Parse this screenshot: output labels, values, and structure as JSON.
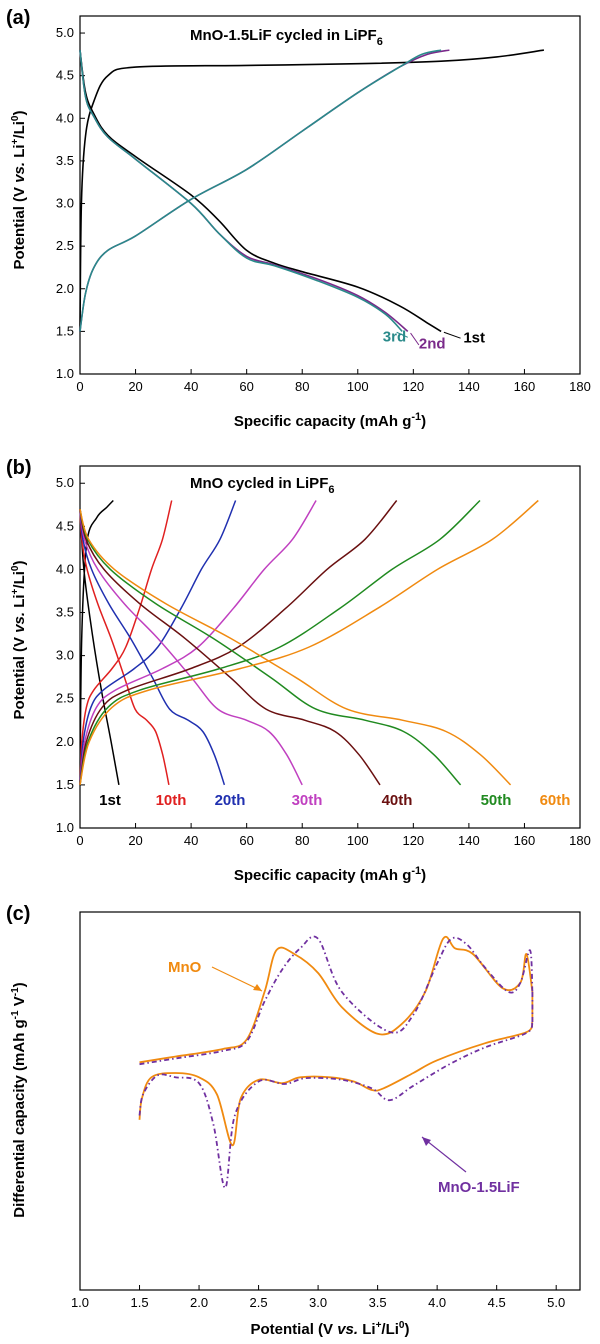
{
  "chart_data": [
    {
      "type": "line",
      "panel": "(a)",
      "title": "MnO-1.5LiF cycled in LiPF",
      "title_sub": "6",
      "xlabel": "Specific capacity (mAh g",
      "xlabel_sup": "-1",
      "xlabel_end": ")",
      "ylabel": "Potential (V vs. Li+/Li0)",
      "xlim": [
        0,
        180
      ],
      "ylim": [
        1.0,
        5.2
      ],
      "xticks": [
        "0",
        "20",
        "40",
        "60",
        "80",
        "100",
        "120",
        "140",
        "160",
        "180"
      ],
      "yticks": [
        "1.0",
        "1.5",
        "2.0",
        "2.5",
        "3.0",
        "3.5",
        "4.0",
        "4.5",
        "5.0"
      ],
      "series": [
        {
          "name": "1st",
          "color": "#000000",
          "charge": [
            [
              0,
              1.5
            ],
            [
              0.5,
              3.0
            ],
            [
              2,
              3.8
            ],
            [
              5,
              4.2
            ],
            [
              10,
              4.5
            ],
            [
              20,
              4.6
            ],
            [
              60,
              4.62
            ],
            [
              100,
              4.64
            ],
            [
              130,
              4.67
            ],
            [
              150,
              4.72
            ],
            [
              167,
              4.8
            ]
          ],
          "discharge": [
            [
              0,
              4.8
            ],
            [
              2,
              4.3
            ],
            [
              5,
              4.05
            ],
            [
              10,
              3.8
            ],
            [
              20,
              3.55
            ],
            [
              40,
              3.1
            ],
            [
              50,
              2.8
            ],
            [
              60,
              2.45
            ],
            [
              70,
              2.3
            ],
            [
              80,
              2.2
            ],
            [
              100,
              2.02
            ],
            [
              115,
              1.8
            ],
            [
              125,
              1.6
            ],
            [
              130,
              1.5
            ]
          ]
        },
        {
          "name": "2nd",
          "color": "#7a2a8a",
          "charge": [
            [
              0,
              1.5
            ],
            [
              2,
              1.95
            ],
            [
              5,
              2.25
            ],
            [
              10,
              2.45
            ],
            [
              20,
              2.62
            ],
            [
              40,
              3.05
            ],
            [
              60,
              3.4
            ],
            [
              80,
              3.85
            ],
            [
              100,
              4.3
            ],
            [
              115,
              4.6
            ],
            [
              125,
              4.75
            ],
            [
              133,
              4.8
            ]
          ],
          "discharge": [
            [
              0,
              4.8
            ],
            [
              2,
              4.25
            ],
            [
              5,
              4.02
            ],
            [
              10,
              3.78
            ],
            [
              20,
              3.52
            ],
            [
              40,
              3.0
            ],
            [
              50,
              2.65
            ],
            [
              60,
              2.38
            ],
            [
              70,
              2.28
            ],
            [
              85,
              2.12
            ],
            [
              100,
              1.92
            ],
            [
              110,
              1.72
            ],
            [
              118,
              1.5
            ]
          ]
        },
        {
          "name": "3rd",
          "color": "#2a8a8a",
          "charge": [
            [
              0,
              1.5
            ],
            [
              2,
              1.95
            ],
            [
              5,
              2.25
            ],
            [
              10,
              2.45
            ],
            [
              20,
              2.62
            ],
            [
              40,
              3.05
            ],
            [
              60,
              3.4
            ],
            [
              80,
              3.85
            ],
            [
              100,
              4.3
            ],
            [
              115,
              4.6
            ],
            [
              123,
              4.75
            ],
            [
              130,
              4.8
            ]
          ],
          "discharge": [
            [
              0,
              4.8
            ],
            [
              2,
              4.25
            ],
            [
              5,
              4.02
            ],
            [
              10,
              3.78
            ],
            [
              20,
              3.52
            ],
            [
              40,
              3.0
            ],
            [
              50,
              2.65
            ],
            [
              60,
              2.36
            ],
            [
              70,
              2.27
            ],
            [
              85,
              2.1
            ],
            [
              100,
              1.9
            ],
            [
              110,
              1.7
            ],
            [
              116,
              1.5
            ]
          ]
        }
      ],
      "labels": [
        {
          "text": "3rd",
          "color": "#2a8a8a",
          "x": 109,
          "y": 1.38
        },
        {
          "text": "2nd",
          "color": "#7a2a8a",
          "x": 122,
          "y": 1.3
        },
        {
          "text": "1st",
          "color": "#000000",
          "x": 138,
          "y": 1.37
        }
      ]
    },
    {
      "type": "line",
      "panel": "(b)",
      "title": "MnO cycled in LiPF",
      "title_sub": "6",
      "xlabel": "Specific capacity (mAh g",
      "xlabel_sup": "-1",
      "xlabel_end": ")",
      "ylabel": "Potential (V vs. Li+/Li0)",
      "xlim": [
        0,
        180
      ],
      "ylim": [
        1.0,
        5.2
      ],
      "xticks": [
        "0",
        "20",
        "40",
        "60",
        "80",
        "100",
        "120",
        "140",
        "160",
        "180"
      ],
      "yticks": [
        "1.0",
        "1.5",
        "2.0",
        "2.5",
        "3.0",
        "3.5",
        "4.0",
        "4.5",
        "5.0"
      ],
      "series": [
        {
          "name": "1st",
          "color": "#000000",
          "cap_d": 14,
          "cap_c": 12
        },
        {
          "name": "10th",
          "color": "#e02020",
          "cap_d": 32,
          "cap_c": 33
        },
        {
          "name": "20th",
          "color": "#2030b0",
          "cap_d": 52,
          "cap_c": 56
        },
        {
          "name": "30th",
          "color": "#c040c0",
          "cap_d": 80,
          "cap_c": 85
        },
        {
          "name": "40th",
          "color": "#6a1010",
          "cap_d": 108,
          "cap_c": 114
        },
        {
          "name": "50th",
          "color": "#208a20",
          "cap_d": 137,
          "cap_c": 144
        },
        {
          "name": "60th",
          "color": "#f08a10",
          "cap_d": 155,
          "cap_c": 165
        }
      ]
    },
    {
      "type": "line",
      "panel": "(c)",
      "xlabel": "Potential (V vs. Li+/Li0)",
      "ylabel": "Differential capacity  (mAh g-1 V-1)",
      "xlim": [
        1.0,
        5.2
      ],
      "xticks": [
        "1.0",
        "1.5",
        "2.0",
        "2.5",
        "3.0",
        "3.5",
        "4.0",
        "4.5",
        "5.0"
      ],
      "series": [
        {
          "name": "MnO",
          "color": "#f08a10",
          "style": "solid",
          "upper": [
            [
              1.5,
              0.3
            ],
            [
              1.8,
              0.6
            ],
            [
              2.2,
              1.0
            ],
            [
              2.4,
              1.5
            ],
            [
              2.55,
              4.0
            ],
            [
              2.65,
              6.2
            ],
            [
              2.8,
              6.0
            ],
            [
              3.0,
              5.0
            ],
            [
              3.2,
              3.2
            ],
            [
              3.5,
              1.8
            ],
            [
              3.7,
              2.3
            ],
            [
              3.9,
              4.0
            ],
            [
              4.05,
              6.8
            ],
            [
              4.15,
              6.3
            ],
            [
              4.3,
              6.0
            ],
            [
              4.55,
              4.2
            ],
            [
              4.7,
              4.5
            ],
            [
              4.75,
              6.0
            ],
            [
              4.8,
              4.0
            ]
          ],
          "lower": [
            [
              1.5,
              -11.5
            ],
            [
              1.52,
              -9.0
            ],
            [
              1.6,
              -6.5
            ],
            [
              1.8,
              -6.0
            ],
            [
              2.0,
              -6.5
            ],
            [
              2.15,
              -8.5
            ],
            [
              2.28,
              -14.5
            ],
            [
              2.35,
              -9.0
            ],
            [
              2.5,
              -6.8
            ],
            [
              2.7,
              -7.2
            ],
            [
              2.85,
              -6.5
            ],
            [
              3.1,
              -6.5
            ],
            [
              3.3,
              -7.0
            ],
            [
              3.45,
              -8.0
            ],
            [
              3.55,
              -7.8
            ],
            [
              3.8,
              -6.0
            ],
            [
              4.0,
              -4.5
            ],
            [
              4.4,
              -2.5
            ],
            [
              4.75,
              -1.2
            ],
            [
              4.8,
              0.0
            ]
          ]
        },
        {
          "name": "MnO-1.5LiF",
          "color": "#7030a0",
          "style": "dashdot",
          "upper": [
            [
              1.5,
              0.2
            ],
            [
              1.8,
              0.5
            ],
            [
              2.2,
              0.9
            ],
            [
              2.4,
              1.4
            ],
            [
              2.55,
              3.5
            ],
            [
              2.7,
              5.2
            ],
            [
              2.85,
              6.3
            ],
            [
              3.0,
              6.8
            ],
            [
              3.2,
              4.0
            ],
            [
              3.6,
              1.9
            ],
            [
              3.8,
              2.8
            ],
            [
              4.0,
              5.5
            ],
            [
              4.12,
              6.8
            ],
            [
              4.25,
              6.5
            ],
            [
              4.4,
              5.3
            ],
            [
              4.6,
              4.0
            ],
            [
              4.7,
              4.5
            ],
            [
              4.78,
              6.2
            ],
            [
              4.8,
              4.0
            ]
          ],
          "lower": [
            [
              1.5,
              -11.0
            ],
            [
              1.53,
              -8.5
            ],
            [
              1.65,
              -6.3
            ],
            [
              1.8,
              -6.5
            ],
            [
              2.0,
              -7.2
            ],
            [
              2.12,
              -12.0
            ],
            [
              2.22,
              -19.5
            ],
            [
              2.3,
              -11.0
            ],
            [
              2.5,
              -7.0
            ],
            [
              2.72,
              -7.3
            ],
            [
              2.9,
              -6.6
            ],
            [
              3.2,
              -6.8
            ],
            [
              3.45,
              -7.8
            ],
            [
              3.6,
              -9.2
            ],
            [
              3.8,
              -7.5
            ],
            [
              4.1,
              -5.0
            ],
            [
              4.4,
              -3.0
            ],
            [
              4.75,
              -1.3
            ],
            [
              4.8,
              0.0
            ]
          ]
        }
      ],
      "labels": [
        {
          "text": "MnO",
          "color": "#f08a10"
        },
        {
          "text": "MnO-1.5LiF",
          "color": "#7030a0"
        }
      ]
    }
  ]
}
